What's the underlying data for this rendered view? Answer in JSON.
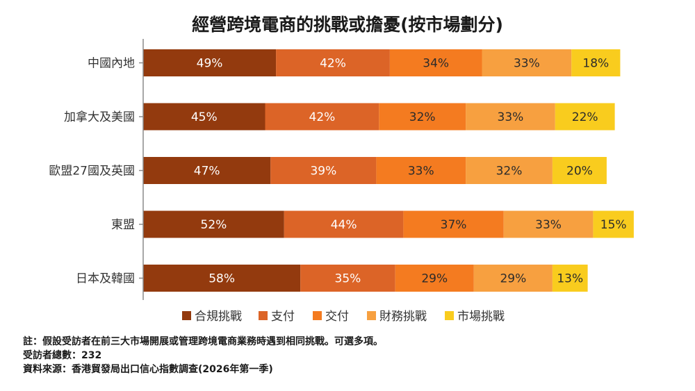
{
  "chart_data": {
    "type": "bar",
    "orientation": "horizontal",
    "stacked": true,
    "title": "經營跨境電商的挑戰或擔憂(按市場劃分)",
    "categories": [
      "中國內地",
      "加拿大及美國",
      "歐盟27國及英國",
      "東盟",
      "日本及韓國"
    ],
    "series": [
      {
        "name": "合規挑戰",
        "color": "#933a0e",
        "values": [
          49,
          45,
          47,
          52,
          58
        ]
      },
      {
        "name": "支付",
        "color": "#dc6427",
        "values": [
          42,
          42,
          39,
          44,
          35
        ]
      },
      {
        "name": "交付",
        "color": "#f47b20",
        "values": [
          34,
          32,
          33,
          37,
          29
        ]
      },
      {
        "name": "財務挑戰",
        "color": "#f7a040",
        "values": [
          33,
          33,
          32,
          33,
          29
        ]
      },
      {
        "name": "市場挑戰",
        "color": "#f9cc1e",
        "values": [
          18,
          22,
          20,
          15,
          13
        ]
      }
    ],
    "value_suffix": "%",
    "legend_position": "bottom",
    "grid": false
  },
  "notes": {
    "note1": "註：假設受訪者在前三大市場開展或管理跨境電商業務時遇到相同挑戰。可選多項。",
    "note2": "受訪者總數：232",
    "note3": "資料來源：香港貿發局出口信心指數調查(2026年第一季)"
  }
}
